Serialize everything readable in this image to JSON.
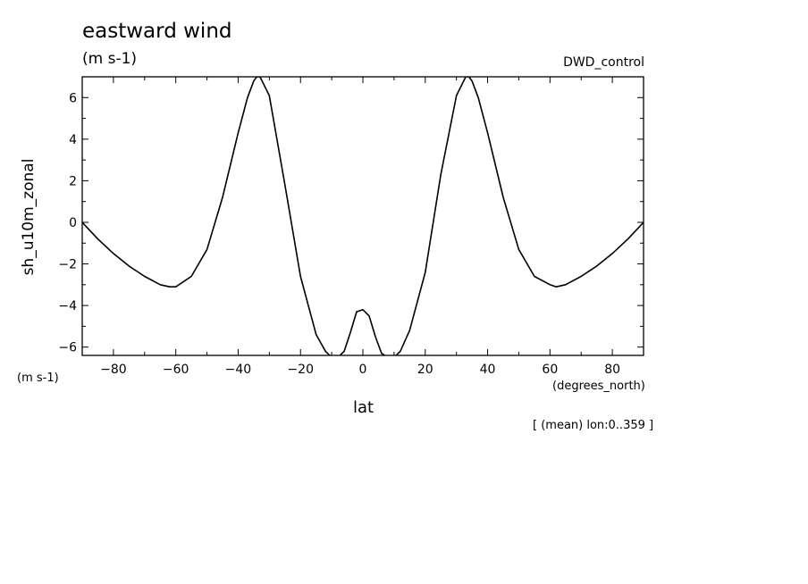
{
  "chart_data": {
    "type": "line",
    "title": "eastward wind",
    "units": "(m s-1)",
    "run_label": "DWD_control",
    "ylabel": "sh_u10m_zonal",
    "y_units": "(m s-1)",
    "xlabel": "lat",
    "x_units": "(degrees_north)",
    "footnote": "[ (mean) lon:0..359 ]",
    "xlim": [
      -90,
      90
    ],
    "ylim": [
      -6.4,
      7.0
    ],
    "x_ticks": [
      -80,
      -60,
      -40,
      -20,
      0,
      20,
      40,
      60,
      80
    ],
    "y_ticks": [
      -6,
      -4,
      -2,
      0,
      2,
      4,
      6
    ],
    "grid": false,
    "series": [
      {
        "color": "#000000",
        "x": [
          -90,
          -85,
          -80,
          -75,
          -70,
          -65,
          -62,
          -60,
          -55,
          -50,
          -45,
          -40,
          -37,
          -35,
          -34,
          -33,
          -30,
          -25,
          -20,
          -15,
          -12,
          -10,
          -8,
          -6,
          -4,
          -2,
          0,
          2,
          4,
          6,
          8,
          10,
          12,
          15,
          20,
          25,
          30,
          33,
          34,
          35,
          37,
          40,
          45,
          50,
          55,
          60,
          62,
          65,
          70,
          75,
          80,
          85,
          90
        ],
        "y": [
          0.0,
          -0.8,
          -1.5,
          -2.1,
          -2.6,
          -3.0,
          -3.1,
          -3.1,
          -2.6,
          -1.3,
          1.2,
          4.3,
          6.0,
          6.8,
          7.0,
          7.0,
          6.1,
          1.8,
          -2.6,
          -5.4,
          -6.2,
          -6.5,
          -6.5,
          -6.2,
          -5.3,
          -4.3,
          -4.2,
          -4.5,
          -5.5,
          -6.3,
          -6.5,
          -6.5,
          -6.2,
          -5.2,
          -2.4,
          2.3,
          6.1,
          7.0,
          7.0,
          6.8,
          6.0,
          4.3,
          1.2,
          -1.3,
          -2.6,
          -3.0,
          -3.1,
          -3.0,
          -2.6,
          -2.1,
          -1.5,
          -0.8,
          0.0
        ]
      }
    ]
  }
}
